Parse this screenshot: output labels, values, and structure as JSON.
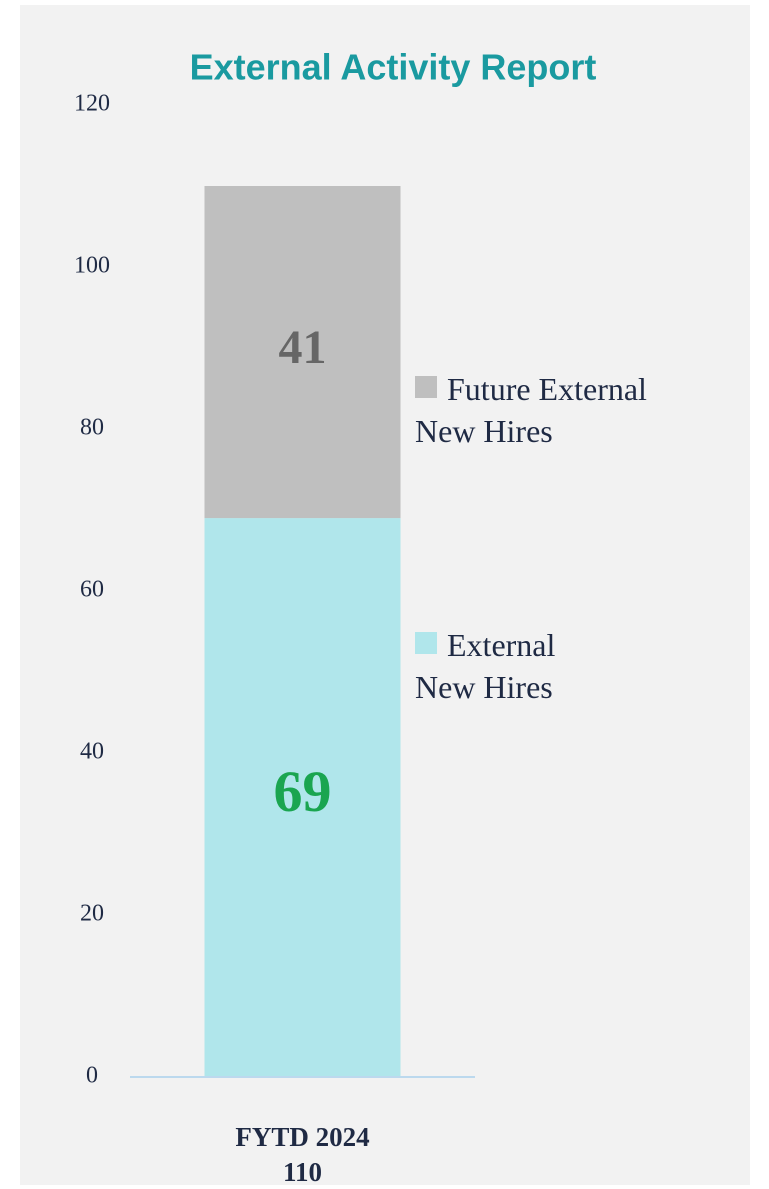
{
  "chart_data": {
    "type": "stacked_bar",
    "title": "External Activity Report",
    "categories": [
      "FYTD 2024"
    ],
    "totals": [
      110
    ],
    "series": [
      {
        "name": "External New Hires",
        "color": "#b0e6eb",
        "label_color": "#1aa550",
        "values": [
          69
        ]
      },
      {
        "name": "Future External New Hires",
        "color": "#bfbfbf",
        "label_color": "#666666",
        "values": [
          41
        ]
      }
    ],
    "ylim": [
      0,
      120
    ],
    "yticks": [
      0,
      20,
      40,
      60,
      80,
      100,
      120
    ],
    "grid": false,
    "legend": "right"
  }
}
